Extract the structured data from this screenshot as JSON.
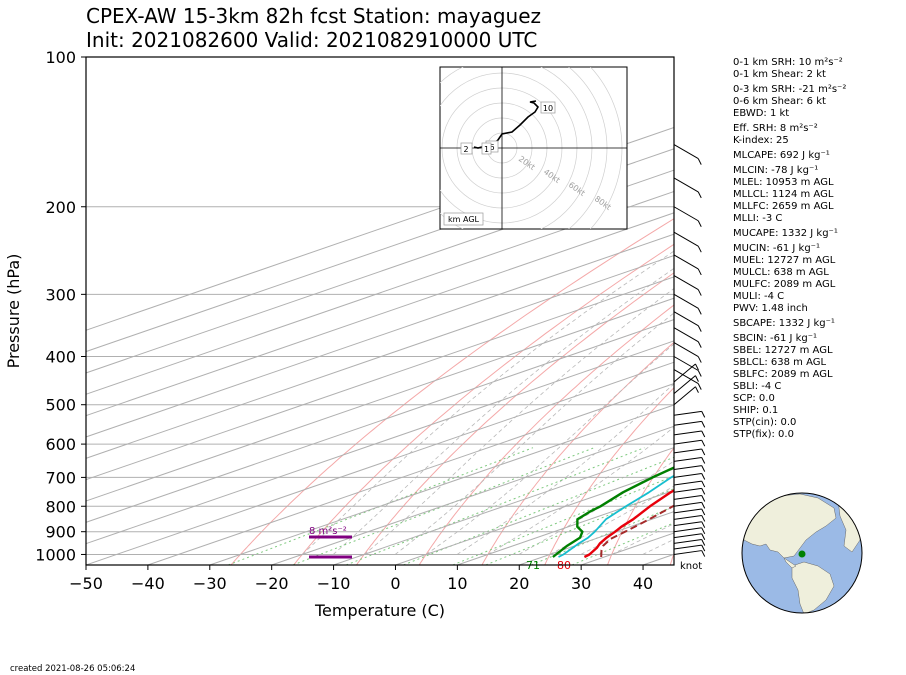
{
  "title_line1": "CPEX-AW 15-3km  82h fcst  Station: mayaguez",
  "title_line2": "Init: 2021082600  Valid: 2021082910000 UTC",
  "created": "created 2021-08-26 05:06:24",
  "knot_label": "knot",
  "helicity_label": "8 m²s⁻²",
  "surface_labels": {
    "temperature": "80",
    "dewpoint": "71"
  },
  "hodograph": {
    "footer": "km AGL",
    "ring_labels": [
      "20kt",
      "40kt",
      "60kt",
      "80kt"
    ],
    "height_labels": [
      "10",
      "6",
      "2",
      "1"
    ]
  },
  "params": [
    "0-1 km SRH: 10 m²s⁻²",
    "0-1 km Shear: 2 kt",
    "0-3 km SRH: -21 m²s⁻²",
    "0-6 km Shear: 6 kt",
    "EBWD: 1 kt",
    "Eff. SRH: 8 m²s⁻²",
    "K-index: 25",
    "MLCAPE: 692 J kg⁻¹",
    "MLCIN: -78 J kg⁻¹",
    "MLEL: 10953 m AGL",
    "MLLCL: 1124 m AGL",
    "MLLFC: 2659 m AGL",
    "MLLI: -3 C",
    "MUCAPE: 1332 J kg⁻¹",
    "MUCIN: -61 J kg⁻¹",
    "MUEL: 12727 m AGL",
    "MULCL: 638 m AGL",
    "MULFC: 2089 m AGL",
    "MULI: -4 C",
    "PWV: 1.48 inch",
    "SBCAPE: 1332 J kg⁻¹",
    "SBCIN: -61 J kg⁻¹",
    "SBEL: 12727 m AGL",
    "SBLCL: 638 m AGL",
    "SBLFC: 2089 m AGL",
    "SBLI: -4 C",
    "SCP: 0.0",
    "SHIP: 0.1",
    "STP(cin): 0.0",
    "STP(fix): 0.0"
  ],
  "colors": {
    "temperature": "#e8000b",
    "dewpoint": "#008000",
    "virtual_temp": "#17becf",
    "parcel": "#a52a2a",
    "helicity": "#800080",
    "isobar": "#b0b0b0",
    "dry_adiabat": "#f4a8a8",
    "moist_adiabat": "#b8b8b8",
    "mixing_ratio": "#7fc97f",
    "ocean": "#9bbae6",
    "land": "#efefdc"
  },
  "chart_data": {
    "type": "line",
    "xlabel": "Temperature (C)",
    "ylabel": "Pressure (hPa)",
    "xlim": [
      -50,
      45
    ],
    "ylim": [
      1050,
      100
    ],
    "y_scale": "log",
    "x_ticks": [
      -50,
      -40,
      -30,
      -20,
      -10,
      0,
      10,
      20,
      30,
      40
    ],
    "y_ticks": [
      1000,
      900,
      800,
      700,
      600,
      500,
      400,
      300,
      200,
      100
    ],
    "grid": true,
    "skew": true,
    "series": [
      {
        "key": "temperature",
        "pressure": [
          1012,
          1000,
          970,
          950,
          925,
          900,
          880,
          850,
          800,
          750,
          700,
          650,
          600,
          550,
          500,
          450,
          400,
          350,
          300,
          250,
          200,
          175,
          150,
          125,
          100
        ],
        "values": [
          26.8,
          26.4,
          24.5,
          22.9,
          21.3,
          19.9,
          18.6,
          17.0,
          13.6,
          10.4,
          7.6,
          5.0,
          1.8,
          -1.5,
          -5.5,
          -10.0,
          -16.0,
          -22.0,
          -30.0,
          -40.0,
          -51.5,
          -58.0,
          -66.0,
          -74.0,
          -80.0
        ]
      },
      {
        "key": "virtual_temp",
        "pressure": [
          1012,
          1000,
          950,
          925,
          900,
          850,
          800,
          750,
          700,
          650,
          600,
          550,
          500,
          450,
          400,
          350,
          300,
          250,
          200,
          175,
          150,
          125,
          100
        ],
        "values": [
          22.6,
          22.2,
          19.5,
          18.3,
          16.6,
          12.6,
          9.7,
          6.9,
          3.5,
          0.6,
          -2.8,
          -6.7,
          -11.5,
          -16.5,
          -19.5,
          -25.0,
          -32.0,
          -41.0,
          -52.0,
          -58.5,
          -66.0,
          -74.0,
          -80.0
        ]
      },
      {
        "key": "dewpoint",
        "pressure": [
          1012,
          1000,
          960,
          925,
          900,
          880,
          850,
          820,
          800,
          750,
          700,
          660,
          630,
          600,
          550,
          500,
          470,
          445,
          420,
          400,
          380,
          350,
          320,
          280,
          250,
          200,
          170,
          140,
          125,
          100
        ],
        "values": [
          21.7,
          21.0,
          18.7,
          17.0,
          14.6,
          11.5,
          8.0,
          6.4,
          5.6,
          2.7,
          0.5,
          -1.0,
          -3.9,
          -6.5,
          -12.5,
          -24.5,
          -33.0,
          -40.0,
          -28.0,
          -23.0,
          -27.5,
          -34.0,
          -39.5,
          -46.0,
          -52.5,
          -66.5,
          -77.0,
          -85.0,
          -88.0,
          -89.0
        ]
      },
      {
        "key": "parcel",
        "pressure": [
          1012,
          980,
          960,
          930,
          900,
          850,
          800,
          750,
          700,
          650,
          600,
          550,
          500,
          450,
          400,
          350,
          300,
          250,
          200,
          150,
          100
        ],
        "values": [
          29.5,
          26.3,
          24.5,
          22.5,
          21.5,
          19.6,
          17.3,
          15.1,
          12.5,
          10.0,
          7.3,
          4.2,
          0.5,
          -4.0,
          -9.5,
          -16.5,
          -25.0,
          -36.0,
          -50.0,
          -66.0,
          -84.0
        ]
      }
    ]
  }
}
